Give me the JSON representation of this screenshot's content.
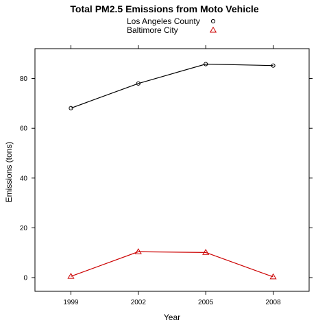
{
  "chart_data": {
    "type": "line",
    "title": "Total PM2.5 Emissions from Moto Vehicle",
    "xlabel": "Year",
    "ylabel": "Emissions (tons)",
    "x": [
      1999,
      2002,
      2005,
      2008
    ],
    "xlim": [
      1997.4,
      2009.6
    ],
    "ylim": [
      -5.5,
      92
    ],
    "xticks": [
      "1999",
      "2002",
      "2005",
      "2008"
    ],
    "yticks": [
      "0",
      "20",
      "40",
      "60",
      "80"
    ],
    "grid": false,
    "legend_position": "top-center",
    "series": [
      {
        "name": "Los Angeles County",
        "values": [
          68.1,
          78.0,
          85.8,
          85.2
        ],
        "color": "#000000",
        "marker": "circle"
      },
      {
        "name": "Baltimore City",
        "values": [
          0.5,
          10.4,
          10.1,
          0.3
        ],
        "color": "#cc0000",
        "marker": "triangle"
      }
    ]
  }
}
